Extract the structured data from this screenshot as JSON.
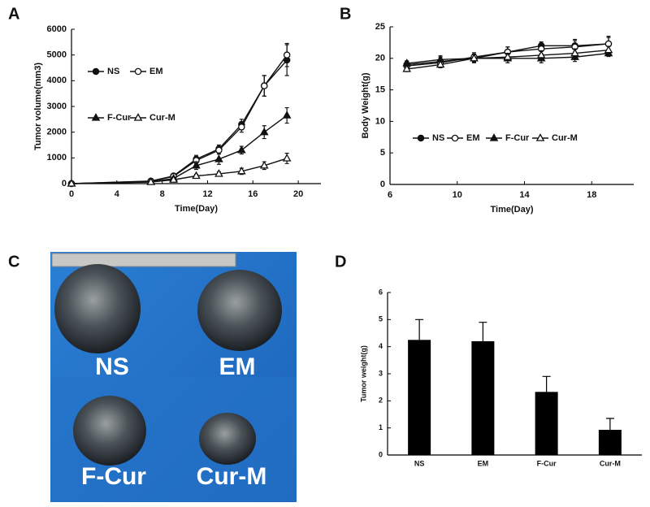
{
  "chart_data": [
    {
      "type": "line",
      "panel": "A",
      "xlabel": "Time(Day)",
      "ylabel": "Tumor volume(mm3)",
      "x": [
        0,
        7,
        9,
        11,
        13,
        15,
        17,
        19
      ],
      "xlim": [
        0,
        22
      ],
      "xticks": [
        0,
        4,
        8,
        12,
        16,
        20
      ],
      "ylim": [
        0,
        6000
      ],
      "yticks": [
        0,
        1000,
        2000,
        3000,
        4000,
        5000,
        6000
      ],
      "series": [
        {
          "name": "NS",
          "marker": "filled-circle",
          "color": "#111111",
          "values": [
            0,
            100,
            300,
            950,
            1350,
            2300,
            3800,
            4800
          ],
          "error": [
            0,
            30,
            80,
            150,
            150,
            200,
            400,
            600
          ]
        },
        {
          "name": "EM",
          "marker": "open-circle",
          "color": "#111111",
          "values": [
            0,
            90,
            280,
            900,
            1300,
            2200,
            3800,
            5000
          ],
          "error": [
            0,
            30,
            70,
            150,
            150,
            200,
            400,
            450
          ]
        },
        {
          "name": "F-Cur",
          "marker": "filled-triangle",
          "color": "#111111",
          "values": [
            0,
            70,
            200,
            700,
            950,
            1300,
            2000,
            2650
          ],
          "error": [
            0,
            20,
            50,
            150,
            200,
            150,
            250,
            300
          ]
        },
        {
          "name": "Cur-M",
          "marker": "open-triangle",
          "color": "#111111",
          "values": [
            0,
            60,
            150,
            300,
            380,
            480,
            700,
            980
          ],
          "error": [
            0,
            20,
            40,
            60,
            80,
            120,
            150,
            200
          ]
        }
      ]
    },
    {
      "type": "line",
      "panel": "B",
      "xlabel": "Time(Day)",
      "ylabel": "Body Weight(g)",
      "x": [
        7,
        9,
        11,
        13,
        15,
        17,
        19
      ],
      "xlim": [
        6,
        20.5
      ],
      "xticks": [
        6,
        10,
        14,
        18
      ],
      "ylim": [
        0,
        25
      ],
      "yticks": [
        0,
        5,
        10,
        15,
        20,
        25
      ],
      "series": [
        {
          "name": "NS",
          "marker": "filled-circle",
          "color": "#111111",
          "values": [
            19.0,
            19.5,
            20.0,
            21.0,
            22.0,
            22.0,
            22.3
          ],
          "error": [
            0.5,
            0.7,
            0.7,
            0.8,
            0.6,
            1.0,
            1.2
          ]
        },
        {
          "name": "EM",
          "marker": "open-circle",
          "color": "#111111",
          "values": [
            18.8,
            19.3,
            20.2,
            21.0,
            21.5,
            21.8,
            22.3
          ],
          "error": [
            0.5,
            0.6,
            0.7,
            0.8,
            0.8,
            1.0,
            1.0
          ]
        },
        {
          "name": "F-Cur",
          "marker": "filled-triangle",
          "color": "#111111",
          "values": [
            19.2,
            19.8,
            20.0,
            20.0,
            20.0,
            20.2,
            20.8
          ],
          "error": [
            0.4,
            0.6,
            0.6,
            0.7,
            0.7,
            0.7,
            0.5
          ]
        },
        {
          "name": "Cur-M",
          "marker": "open-triangle",
          "color": "#111111",
          "values": [
            18.3,
            19.0,
            20.0,
            20.2,
            20.5,
            20.8,
            21.3
          ],
          "error": [
            0.4,
            0.5,
            0.6,
            0.6,
            0.7,
            0.7,
            0.6
          ]
        }
      ]
    },
    {
      "type": "bar",
      "panel": "D",
      "ylabel": "Tumor weight(g)",
      "categories": [
        "NS",
        "EM",
        "F-Cur",
        "Cur-M"
      ],
      "values": [
        4.25,
        4.2,
        2.33,
        0.93
      ],
      "error": [
        0.75,
        0.7,
        0.57,
        0.42
      ],
      "color": "#000000",
      "ylim": [
        0,
        6
      ],
      "yticks": [
        0,
        1,
        2,
        3,
        4,
        5,
        6
      ]
    }
  ],
  "photo": {
    "panel": "C",
    "labels": [
      "NS",
      "EM",
      "F-Cur",
      "Cur-M"
    ]
  }
}
